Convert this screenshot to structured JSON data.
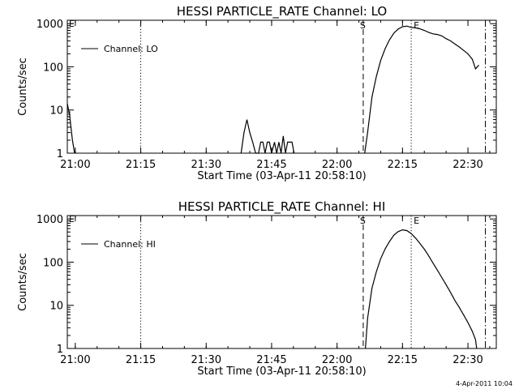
{
  "footer_timestamp": "4-Apr-2011 10:04",
  "chart_data": [
    {
      "type": "line",
      "title": "HESSI PARTICLE_RATE Channel: LO",
      "xlabel": "Start Time (03-Apr-11 20:58:10)",
      "ylabel": "Counts/sec",
      "y_scale": "log",
      "ylim": [
        1,
        1200
      ],
      "xlim": [
        "20:58:10",
        "22:36:30"
      ],
      "x_tick_labels": [
        "21:00",
        "21:15",
        "21:30",
        "21:45",
        "22:00",
        "22:15",
        "22:30"
      ],
      "y_tick_labels": [
        "1",
        "10",
        "100",
        "1000"
      ],
      "legend": {
        "position": "top-left",
        "entries": [
          "Channel: LO"
        ]
      },
      "markers": [
        {
          "time": "21:15",
          "style": "dotted",
          "label": ""
        },
        {
          "time": "22:06",
          "style": "dashed",
          "label": "S"
        },
        {
          "time": "22:17",
          "style": "dotted",
          "label": "E"
        },
        {
          "time": "22:34",
          "style": "dash-dot",
          "label": ""
        }
      ],
      "series": [
        {
          "name": "Channel: LO",
          "segments": [
            [
              [
                "20:58:10",
                14
              ],
              [
                "20:58:40",
                8
              ],
              [
                "20:59:20",
                2
              ],
              [
                "20:59:50",
                1
              ]
            ],
            [
              [
                "21:38:00",
                1
              ],
              [
                "21:38:40",
                3
              ],
              [
                "21:39:20",
                6
              ],
              [
                "21:40:00",
                3
              ],
              [
                "21:40:40",
                1.8
              ],
              [
                "21:41:20",
                1
              ],
              [
                "21:42:00",
                1
              ],
              [
                "21:42:30",
                1.8
              ],
              [
                "21:43:00",
                1.8
              ],
              [
                "21:43:30",
                1
              ],
              [
                "21:44:00",
                1.8
              ],
              [
                "21:44:30",
                1.8
              ],
              [
                "21:45:00",
                1
              ],
              [
                "21:45:40",
                1.8
              ],
              [
                "21:46:10",
                1
              ],
              [
                "21:46:40",
                1.8
              ],
              [
                "21:47:10",
                1
              ],
              [
                "21:47:40",
                2.5
              ],
              [
                "21:48:10",
                1
              ],
              [
                "21:48:40",
                1.8
              ],
              [
                "21:49:10",
                1.8
              ],
              [
                "21:49:40",
                1.8
              ],
              [
                "21:50:10",
                1
              ]
            ],
            [
              [
                "22:06:20",
                1
              ],
              [
                "22:07:00",
                3
              ],
              [
                "22:08:00",
                20
              ],
              [
                "22:09:00",
                60
              ],
              [
                "22:10:00",
                140
              ],
              [
                "22:11:00",
                260
              ],
              [
                "22:12:00",
                420
              ],
              [
                "22:13:00",
                600
              ],
              [
                "22:14:00",
                750
              ],
              [
                "22:15:00",
                850
              ],
              [
                "22:16:00",
                880
              ],
              [
                "22:17:00",
                820
              ],
              [
                "22:18:00",
                800
              ],
              [
                "22:19:00",
                760
              ],
              [
                "22:20:00",
                700
              ],
              [
                "22:21:00",
                630
              ],
              [
                "22:22:00",
                580
              ],
              [
                "22:23:00",
                560
              ],
              [
                "22:24:00",
                520
              ],
              [
                "22:25:00",
                450
              ],
              [
                "22:26:00",
                400
              ],
              [
                "22:27:00",
                340
              ],
              [
                "22:28:00",
                290
              ],
              [
                "22:29:00",
                240
              ],
              [
                "22:30:00",
                200
              ],
              [
                "22:31:00",
                150
              ],
              [
                "22:31:45",
                90
              ],
              [
                "22:32:30",
                110
              ]
            ]
          ]
        }
      ]
    },
    {
      "type": "line",
      "title": "HESSI PARTICLE_RATE Channel: HI",
      "xlabel": "Start Time (03-Apr-11 20:58:10)",
      "ylabel": "Counts/sec",
      "y_scale": "log",
      "ylim": [
        1,
        1200
      ],
      "xlim": [
        "20:58:10",
        "22:36:30"
      ],
      "x_tick_labels": [
        "21:00",
        "21:15",
        "21:30",
        "21:45",
        "22:00",
        "22:15",
        "22:30"
      ],
      "y_tick_labels": [
        "1",
        "10",
        "100",
        "1000"
      ],
      "legend": {
        "position": "top-left",
        "entries": [
          "Channel: HI"
        ]
      },
      "markers": [
        {
          "time": "21:15",
          "style": "dotted",
          "label": ""
        },
        {
          "time": "22:06",
          "style": "dashed",
          "label": "S"
        },
        {
          "time": "22:17",
          "style": "dotted",
          "label": "E"
        },
        {
          "time": "22:34",
          "style": "dash-dot",
          "label": ""
        }
      ],
      "series": [
        {
          "name": "Channel: HI",
          "segments": [
            [
              [
                "22:06:30",
                1
              ],
              [
                "22:07:00",
                5
              ],
              [
                "22:08:00",
                25
              ],
              [
                "22:09:00",
                60
              ],
              [
                "22:10:00",
                120
              ],
              [
                "22:11:00",
                200
              ],
              [
                "22:12:00",
                300
              ],
              [
                "22:13:00",
                420
              ],
              [
                "22:14:00",
                510
              ],
              [
                "22:15:00",
                560
              ],
              [
                "22:16:00",
                540
              ],
              [
                "22:17:00",
                460
              ],
              [
                "22:18:00",
                360
              ],
              [
                "22:19:00",
                270
              ],
              [
                "22:20:00",
                200
              ],
              [
                "22:21:00",
                140
              ],
              [
                "22:22:00",
                95
              ],
              [
                "22:23:00",
                65
              ],
              [
                "22:24:00",
                44
              ],
              [
                "22:25:00",
                30
              ],
              [
                "22:26:00",
                20
              ],
              [
                "22:27:00",
                13
              ],
              [
                "22:28:00",
                9
              ],
              [
                "22:29:00",
                6
              ],
              [
                "22:30:00",
                4
              ],
              [
                "22:31:00",
                2.5
              ],
              [
                "22:31:45",
                1.6
              ],
              [
                "22:32:00",
                1
              ]
            ]
          ]
        }
      ]
    }
  ]
}
